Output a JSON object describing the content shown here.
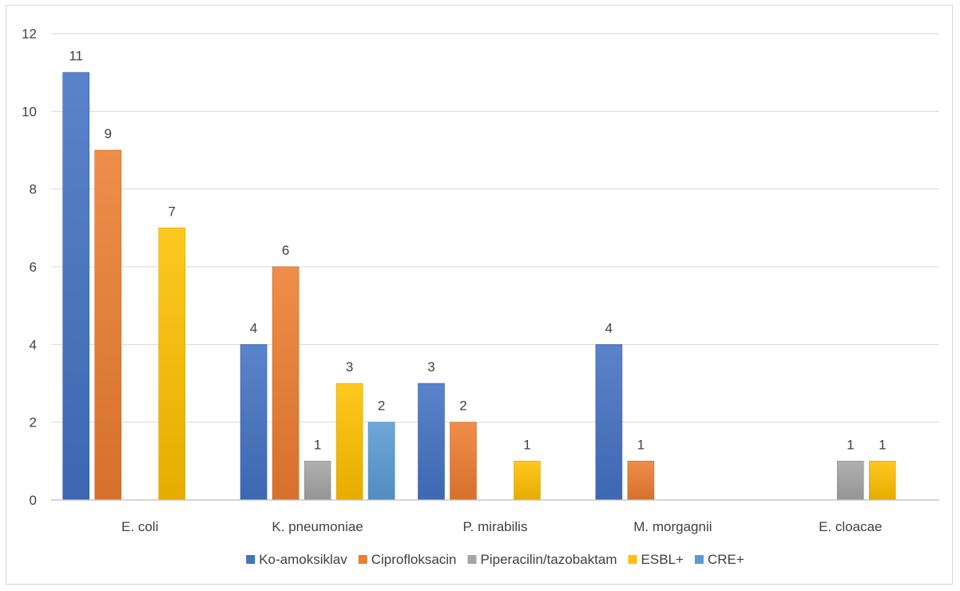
{
  "chart_data": {
    "type": "bar",
    "title": "",
    "xlabel": "",
    "ylabel": "",
    "ylim": [
      0,
      12
    ],
    "yticks": [
      0,
      2,
      4,
      6,
      8,
      10,
      12
    ],
    "grid": true,
    "legend_position": "bottom",
    "categories": [
      "E. coli",
      "K. pneumoniae",
      "P. mirabilis",
      "M. morgagnii",
      "E. cloacae"
    ],
    "series": [
      {
        "name": "Ko-amoksiklav",
        "color": "#4472c4",
        "values": [
          11,
          4,
          3,
          4,
          null
        ]
      },
      {
        "name": "Ciprofloksacin",
        "color": "#ed7d31",
        "values": [
          9,
          6,
          2,
          1,
          null
        ]
      },
      {
        "name": "Piperacilin/tazobaktam",
        "color": "#a5a5a5",
        "values": [
          null,
          1,
          null,
          null,
          1
        ]
      },
      {
        "name": "ESBL+",
        "color": "#ffc000",
        "values": [
          7,
          3,
          1,
          null,
          1
        ]
      },
      {
        "name": "CRE+",
        "color": "#5b9bd5",
        "values": [
          null,
          2,
          null,
          null,
          null
        ]
      }
    ]
  }
}
